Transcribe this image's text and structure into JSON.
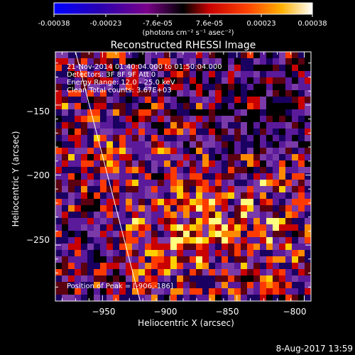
{
  "colorbar": {
    "tick_labels": [
      "-0.00038",
      "-0.00023",
      "-7.6e-05",
      "7.6e-05",
      "0.00023",
      "0.00038"
    ],
    "unit_label": "(photons cm⁻² s⁻¹ asec⁻²)",
    "range": [
      -0.00038,
      0.00038
    ],
    "colors": [
      "#0000ff",
      "#2a00b0",
      "#7a008a",
      "#c80000",
      "#ff4400",
      "#ff9a00",
      "#ffe000",
      "#ffffff"
    ]
  },
  "chart_data": {
    "type": "heatmap",
    "title": "Reconstructed RHESSI Image",
    "xlabel": "Heliocentric X (arcsec)",
    "ylabel": "Heliocentric Y (arcsec)",
    "xlim": [
      -985,
      -795
    ],
    "ylim": [
      -290,
      -112
    ],
    "x_ticks": [
      -950,
      -900,
      -850,
      -800
    ],
    "x_tick_labels": [
      "−950",
      "−900",
      "−850",
      "−800"
    ],
    "y_ticks": [
      -150,
      -200,
      -250
    ],
    "y_tick_labels": [
      "−150",
      "−200",
      "−250"
    ],
    "grid": false,
    "limb_line": [
      [
        -970,
        -112
      ],
      [
        -922,
        -290
      ]
    ],
    "peak_position": [
      -906,
      -186
    ],
    "annotations": [
      "21-Nov-2014 01:40:04.000 to 01:50:04.000",
      "Detectors: 3F 8F 9F  Att 0",
      "Energy Range: 12.0 - 25.0 keV",
      "Clean     Total counts: 3.67E+03"
    ],
    "peak_label": "Position of Peak = [-906,-186]"
  },
  "footer": {
    "date": "8-Aug-2017 13:59"
  }
}
